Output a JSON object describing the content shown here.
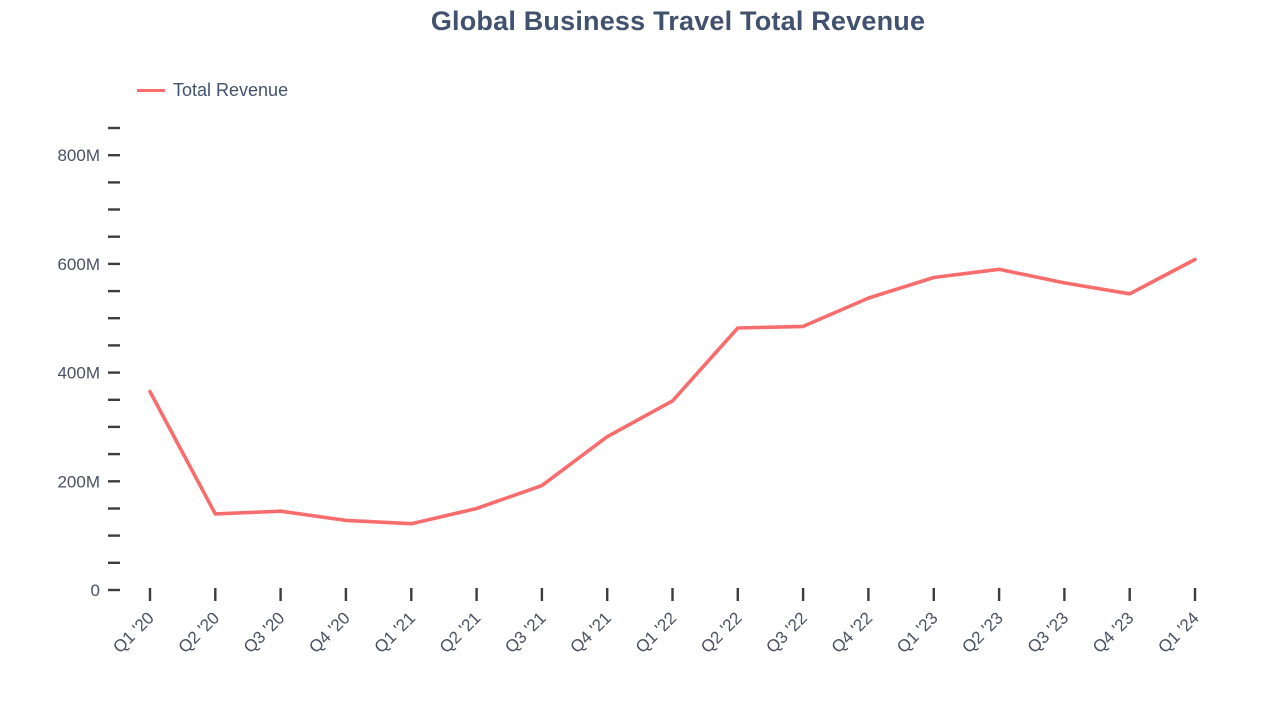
{
  "chart_data": {
    "type": "line",
    "title": "Global Business Travel Total Revenue",
    "categories": [
      "Q1 '20",
      "Q2 '20",
      "Q3 '20",
      "Q4 '20",
      "Q1 '21",
      "Q2 '21",
      "Q3 '21",
      "Q4 '21",
      "Q1 '22",
      "Q2 '22",
      "Q3 '22",
      "Q4 '22",
      "Q1 '23",
      "Q2 '23",
      "Q3 '23",
      "Q4 '23",
      "Q1 '24"
    ],
    "series": [
      {
        "name": "Total Revenue",
        "values": [
          365,
          140,
          145,
          128,
          122,
          150,
          192,
          282,
          348,
          482,
          485,
          537,
          575,
          590,
          565,
          545,
          608
        ]
      }
    ],
    "value_unit": "M",
    "xlabel": "",
    "ylabel": "",
    "ylim": [
      0,
      850
    ],
    "ytick_minor": 50,
    "ytick_major": 200,
    "ytick_labels": [
      "0",
      "200M",
      "400M",
      "600M",
      "800M"
    ],
    "grid": false,
    "legend_position": "top-left",
    "line_color": "#f76d6d",
    "title_color": "#42526e",
    "tick_label_color": "#4a5160",
    "tick_mark_color": "#3d3d3d"
  }
}
